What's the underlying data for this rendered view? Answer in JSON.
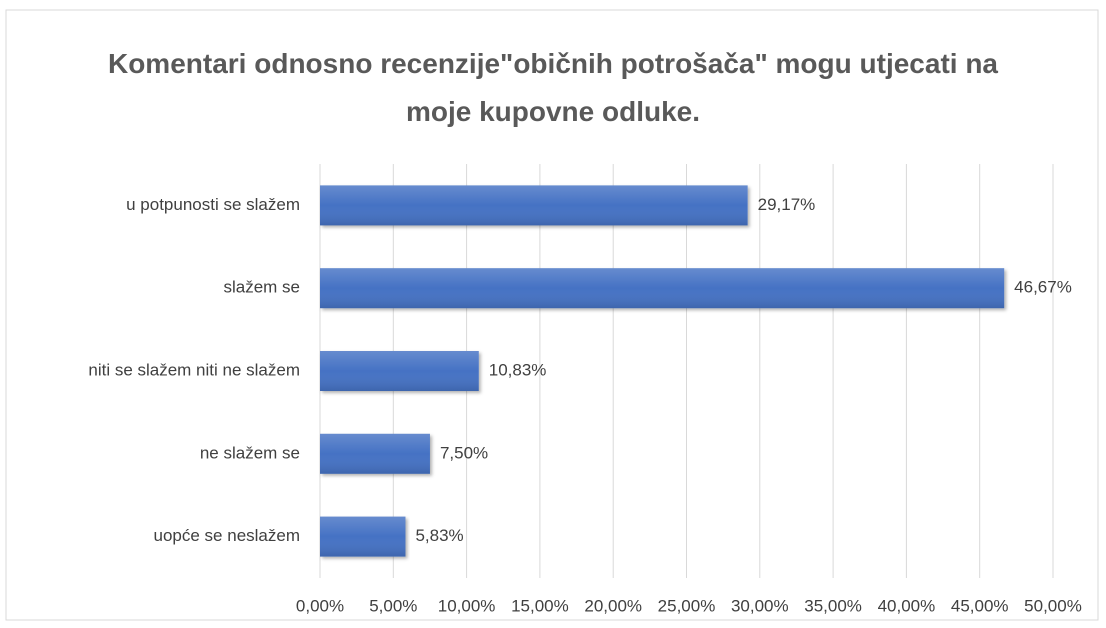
{
  "chart_data": {
    "type": "barh",
    "title": "Komentari odnosno recenzije\"običnih potrošača\" mogu utjecati na moje kupovne odluke.",
    "categories": [
      "u potpunosti se slažem",
      "slažem se",
      "niti se slažem niti ne slažem",
      "ne slažem se",
      "uopće se neslažem"
    ],
    "values": [
      29.17,
      46.67,
      10.83,
      7.5,
      5.83
    ],
    "value_labels": [
      "29,17%",
      "46,67%",
      "10,83%",
      "7,50%",
      "5,83%"
    ],
    "color": "#4472c4",
    "xlim": [
      0,
      50
    ],
    "xticks": [
      {
        "value": 0,
        "label": "0,00%"
      },
      {
        "value": 5,
        "label": "5,00%"
      },
      {
        "value": 10,
        "label": "10,00%"
      },
      {
        "value": 15,
        "label": "15,00%"
      },
      {
        "value": 20,
        "label": "20,00%"
      },
      {
        "value": 25,
        "label": "25,00%"
      },
      {
        "value": 30,
        "label": "30,00%"
      },
      {
        "value": 35,
        "label": "35,00%"
      },
      {
        "value": 40,
        "label": "40,00%"
      },
      {
        "value": 45,
        "label": "45,00%"
      },
      {
        "value": 50,
        "label": "50,00%"
      }
    ],
    "grid": true
  }
}
